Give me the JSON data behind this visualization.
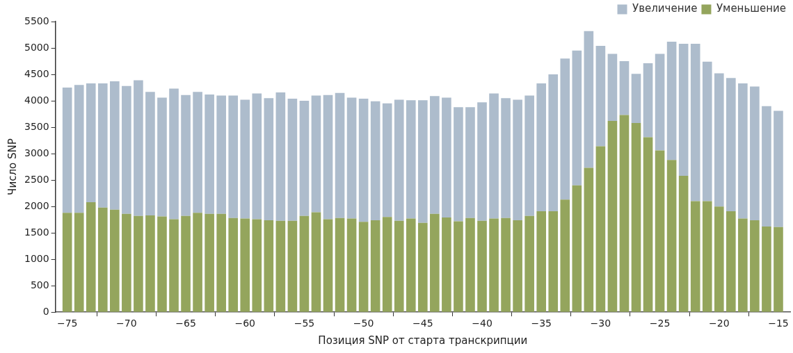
{
  "chart_data": {
    "type": "bar",
    "stacked": true,
    "xlabel": "Позиция SNP от старта транскрипции",
    "ylabel": "Число SNP",
    "x": [
      -75,
      -74,
      -73,
      -72,
      -71,
      -70,
      -69,
      -68,
      -67,
      -66,
      -65,
      -64,
      -63,
      -62,
      -61,
      -60,
      -59,
      -58,
      -57,
      -56,
      -55,
      -54,
      -53,
      -52,
      -51,
      -50,
      -49,
      -48,
      -47,
      -46,
      -45,
      -44,
      -43,
      -42,
      -41,
      -40,
      -39,
      -38,
      -37,
      -36,
      -35,
      -34,
      -33,
      -32,
      -31,
      -30,
      -29,
      -28,
      -27,
      -26,
      -25,
      -24,
      -23,
      -22,
      -21,
      -20,
      -19,
      -18,
      -17,
      -16,
      -15
    ],
    "series": [
      {
        "name": "Уменьшение",
        "color": "#94a55d",
        "values": [
          1880,
          1880,
          2080,
          1980,
          1940,
          1860,
          1820,
          1830,
          1810,
          1760,
          1820,
          1880,
          1860,
          1860,
          1780,
          1770,
          1760,
          1740,
          1730,
          1730,
          1820,
          1890,
          1760,
          1780,
          1770,
          1710,
          1740,
          1800,
          1730,
          1770,
          1690,
          1860,
          1790,
          1720,
          1780,
          1730,
          1770,
          1780,
          1740,
          1820,
          1910,
          1910,
          2130,
          2400,
          2730,
          3140,
          3620,
          3730,
          3580,
          3310,
          3060,
          2880,
          2580,
          2100,
          2100,
          2000,
          1910,
          1770,
          1740,
          1620,
          1610
        ]
      },
      {
        "name": "Увеличение",
        "color": "#adbccc",
        "values": [
          2370,
          2420,
          2250,
          2350,
          2430,
          2420,
          2570,
          2340,
          2250,
          2470,
          2290,
          2290,
          2260,
          2240,
          2320,
          2250,
          2380,
          2310,
          2430,
          2310,
          2180,
          2210,
          2350,
          2370,
          2290,
          2330,
          2250,
          2150,
          2290,
          2240,
          2320,
          2230,
          2270,
          2160,
          2100,
          2240,
          2370,
          2270,
          2280,
          2280,
          2420,
          2590,
          2670,
          2550,
          2590,
          1900,
          1270,
          1020,
          930,
          1400,
          1830,
          2240,
          2500,
          2980,
          2640,
          2520,
          2520,
          2560,
          2530,
          2280,
          2200
        ]
      }
    ],
    "xlim": [
      -76,
      -14
    ],
    "xticks": [
      -75,
      -70,
      -65,
      -60,
      -55,
      -50,
      -45,
      -40,
      -35,
      -30,
      -25,
      -20,
      -15
    ],
    "ylim": [
      0,
      5500
    ],
    "yticks": [
      0,
      500,
      1000,
      1500,
      2000,
      2500,
      3000,
      3500,
      4000,
      4500,
      5000,
      5500
    ],
    "legend": "top right",
    "grid": false
  }
}
